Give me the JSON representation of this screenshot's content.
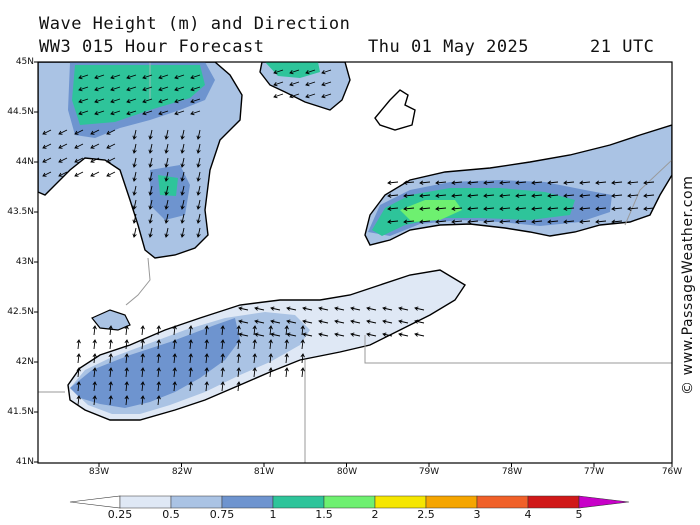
{
  "header": {
    "title_line1": "Wave Height (m) and Direction",
    "title_line2": "WW3 015 Hour Forecast",
    "date": "Thu 01 May 2025",
    "time": "21 UTC"
  },
  "credit": "© www.PassageWeather.com",
  "map": {
    "lat_labels": [
      "45N",
      "44.5N",
      "44N",
      "43.5N",
      "43N",
      "42.5N",
      "42N",
      "41.5N",
      "41N"
    ],
    "lon_labels": [
      "83W",
      "82W",
      "81W",
      "80W",
      "79W",
      "78W",
      "77W",
      "76W"
    ],
    "lake_color": "#ffffff",
    "land_color": "#ffffff"
  },
  "colorbar": {
    "labels": [
      "0.25",
      "0.5",
      "0.75",
      "1",
      "1.5",
      "2",
      "2.5",
      "3",
      "4",
      "5"
    ],
    "colors": [
      "#dfe8f5",
      "#aac3e4",
      "#6e94cf",
      "#2ec49a",
      "#6ef070",
      "#f5e600",
      "#f5a500",
      "#f06028",
      "#d01818",
      "#a8008c",
      "#c800c8"
    ]
  }
}
